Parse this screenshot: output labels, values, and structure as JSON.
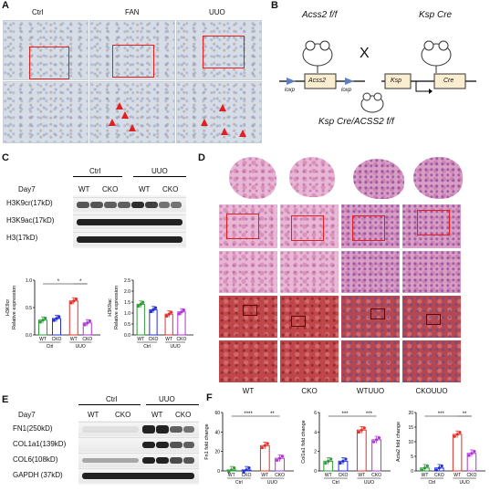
{
  "panels": {
    "A": {
      "label": "A",
      "cols": [
        "Ctrl",
        "FAN",
        "UUO"
      ]
    },
    "B": {
      "label": "B",
      "mouse1": "Acss2 f/f",
      "cross": "X",
      "mouse2": "Ksp Cre",
      "gene1": "Acss2",
      "loxp": "loxp",
      "ksp": "Ksp",
      "cre": "Cre",
      "offspring": "Ksp Cre/ACSS2 f/f"
    },
    "C": {
      "label": "C",
      "day": "Day7",
      "groups": [
        "Ctrl",
        "UUO"
      ],
      "lanes": [
        "WT",
        "CKO",
        "WT",
        "CKO"
      ],
      "rows": [
        "H3K9cr(17kD)",
        "H3K9ac(17kD)",
        "H3(17kD)"
      ]
    },
    "D": {
      "label": "D",
      "cols": [
        "WT",
        "CKO",
        "WTUUO",
        "CKOUUO"
      ]
    },
    "E": {
      "label": "E",
      "day": "Day7",
      "groups": [
        "Ctrl",
        "UUO"
      ],
      "lanes": [
        "WT",
        "CKO",
        "WT",
        "CKO"
      ],
      "rows": [
        "FN1(250kD)",
        "COL1a1(139kD)",
        "COL6(108kD)",
        "GAPDH (37kD)"
      ]
    },
    "F": {
      "label": "F"
    }
  },
  "colors": {
    "wt_ctrl": "#2e9b3a",
    "cko_ctrl": "#2330d6",
    "wt_uuo": "#e0302a",
    "cko_uuo": "#b035d6"
  },
  "chart_data": [
    {
      "type": "bar",
      "panel": "C-left",
      "ylabel": "H3K9cr\nRelative expression",
      "ylim": [
        0,
        1.0
      ],
      "yticks": [
        "0.0",
        "0.5",
        "1.0"
      ],
      "categories": [
        "WT",
        "CKO",
        "WT",
        "CKO"
      ],
      "groups": [
        "Ctrl",
        "UUO"
      ],
      "values": [
        0.27,
        0.3,
        0.62,
        0.22
      ],
      "significance": [
        "*",
        "*"
      ]
    },
    {
      "type": "bar",
      "panel": "C-right",
      "ylabel": "H3K9ac\nRelative expression",
      "ylim": [
        0,
        2.5
      ],
      "yticks": [
        "0.0",
        "0.5",
        "1.0",
        "1.5",
        "2.0",
        "2.5"
      ],
      "categories": [
        "WT",
        "CKO",
        "WT",
        "CKO"
      ],
      "groups": [
        "Ctrl",
        "UUO"
      ],
      "values": [
        1.4,
        1.15,
        0.95,
        1.05
      ]
    },
    {
      "type": "bar",
      "panel": "F-1",
      "ylabel": "Fn1 fold change",
      "ylim": [
        0,
        60
      ],
      "yticks": [
        "0",
        "20",
        "40",
        "60"
      ],
      "categories": [
        "WT",
        "CKO",
        "WT",
        "CKO"
      ],
      "groups": [
        "Ctrl",
        "UUO"
      ],
      "values": [
        1,
        1,
        26,
        13
      ],
      "significance": [
        "****",
        "**"
      ]
    },
    {
      "type": "bar",
      "panel": "F-2",
      "ylabel": "Col1a1 fold change",
      "ylim": [
        0,
        6
      ],
      "yticks": [
        "0",
        "2",
        "4",
        "6"
      ],
      "categories": [
        "WT",
        "CKO",
        "WT",
        "CKO"
      ],
      "groups": [
        "Ctrl",
        "UUO"
      ],
      "values": [
        1,
        1,
        4.2,
        3.2
      ],
      "significance": [
        "***",
        "***"
      ]
    },
    {
      "type": "bar",
      "panel": "F-3",
      "ylabel": "Acta2 fold change",
      "ylim": [
        0,
        20
      ],
      "yticks": [
        "0",
        "5",
        "10",
        "15",
        "20"
      ],
      "categories": [
        "WT",
        "CKO",
        "WT",
        "CKO"
      ],
      "groups": [
        "Ctrl",
        "UUO"
      ],
      "values": [
        1,
        1,
        12.5,
        6
      ],
      "significance": [
        "***",
        "**"
      ]
    }
  ]
}
